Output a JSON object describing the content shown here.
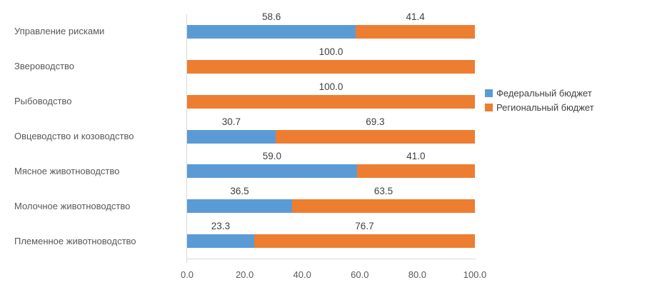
{
  "chart_data": {
    "type": "bar",
    "orientation": "horizontal",
    "stacked": true,
    "title": "",
    "categories": [
      "Управление рисками",
      "Звероводство",
      "Рыбоводство",
      "Овцеводство и козоводство",
      "Мясное животноводство",
      "Молочное животноводство",
      "Племенное животноводство"
    ],
    "series": [
      {
        "name": "Федеральный бюджет",
        "color": "#5B9BD5",
        "values": [
          58.6,
          0.0,
          0.0,
          30.7,
          59.0,
          36.5,
          23.3
        ]
      },
      {
        "name": "Региональный бюджет",
        "color": "#ED7D31",
        "values": [
          41.4,
          100.0,
          100.0,
          69.3,
          41.0,
          63.5,
          76.7
        ]
      }
    ],
    "x_axis": {
      "min": 0,
      "max": 100,
      "ticks": [
        "0.0",
        "20.0",
        "40.0",
        "60.0",
        "80.0",
        "100.0"
      ]
    },
    "value_labels": true,
    "grid": false,
    "legend": {
      "position": "right",
      "entries": [
        "Федеральный бюджет",
        "Региональный бюджет"
      ]
    },
    "axis_color": "#D9D9D9",
    "label_color": "#595959",
    "value_label_color": "#404040"
  }
}
